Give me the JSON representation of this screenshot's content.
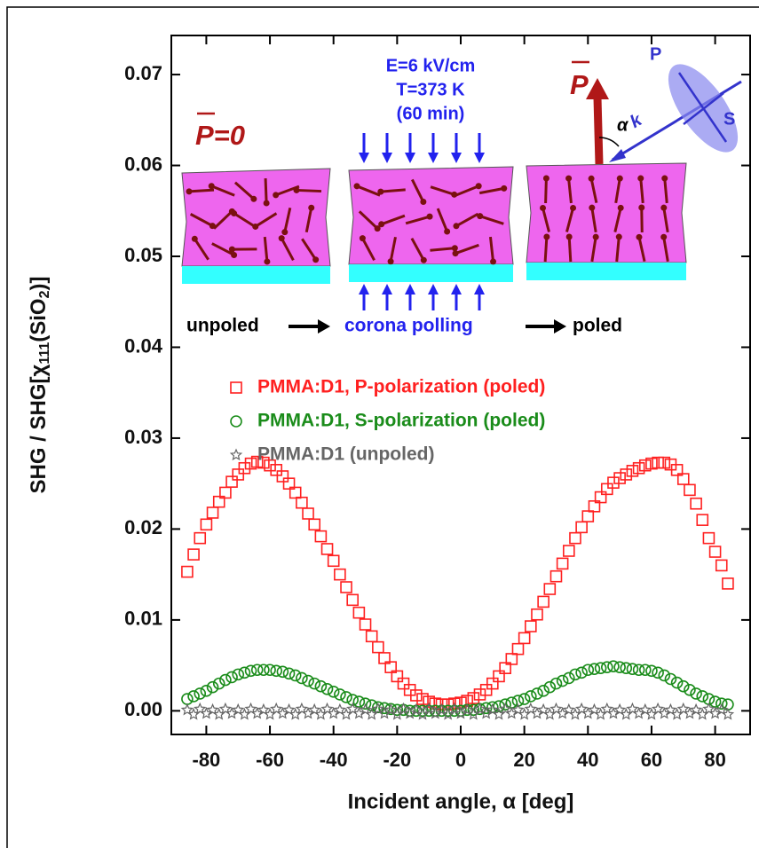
{
  "chart_data": {
    "type": "scatter",
    "ylabel": [
      "SHG / SHG[",
      "χ",
      "111",
      "(SiO",
      "2",
      ")]"
    ],
    "xlabel": "Incident angle, α [deg]",
    "xlim": [
      -91,
      91
    ],
    "xticks": [
      -80,
      -60,
      -40,
      -20,
      0,
      20,
      40,
      60,
      80
    ],
    "ylim": [
      -0.0026,
      0.0743
    ],
    "yticks": [
      {
        "value": 0,
        "label": "0.00"
      },
      0.01,
      0.02,
      0.03,
      0.04,
      0.05,
      0.06,
      0.07
    ],
    "x": [
      -86,
      -84,
      -82,
      -80,
      -78,
      -76,
      -74,
      -72,
      -70,
      -68,
      -66,
      -64,
      -62,
      -60,
      -58,
      -56,
      -54,
      -52,
      -50,
      -48,
      -46,
      -44,
      -42,
      -40,
      -38,
      -36,
      -34,
      -32,
      -30,
      -28,
      -26,
      -24,
      -22,
      -20,
      -18,
      -16,
      -14,
      -12,
      -10,
      -8,
      -6,
      -4,
      -2,
      0,
      2,
      4,
      6,
      8,
      10,
      12,
      14,
      16,
      18,
      20,
      22,
      24,
      26,
      28,
      30,
      32,
      34,
      36,
      38,
      40,
      42,
      44,
      46,
      48,
      50,
      52,
      54,
      56,
      58,
      60,
      62,
      64,
      66,
      68,
      70,
      72,
      74,
      76,
      78,
      80,
      82,
      84
    ],
    "series": [
      {
        "name": "PMMA:D1, P-polarization (poled)",
        "color": "#ff2020",
        "marker": "square",
        "values": [
          0.0153,
          0.0172,
          0.019,
          0.0205,
          0.0218,
          0.023,
          0.024,
          0.0252,
          0.026,
          0.0267,
          0.0272,
          0.0274,
          0.0273,
          0.027,
          0.0265,
          0.0258,
          0.025,
          0.024,
          0.0229,
          0.0217,
          0.0205,
          0.0192,
          0.0178,
          0.0165,
          0.015,
          0.0136,
          0.0122,
          0.0108,
          0.0095,
          0.0082,
          0.007,
          0.0058,
          0.0048,
          0.0038,
          0.003,
          0.0023,
          0.0017,
          0.0013,
          0.001,
          0.0008,
          0.0007,
          0.0007,
          0.0008,
          0.0009,
          0.0011,
          0.0014,
          0.0018,
          0.0023,
          0.003,
          0.0038,
          0.0047,
          0.0057,
          0.0068,
          0.008,
          0.0093,
          0.0106,
          0.012,
          0.0134,
          0.0148,
          0.0162,
          0.0176,
          0.019,
          0.0202,
          0.0214,
          0.0225,
          0.0235,
          0.0244,
          0.0251,
          0.0256,
          0.026,
          0.0264,
          0.0267,
          0.027,
          0.0272,
          0.0273,
          0.0273,
          0.0271,
          0.0265,
          0.0255,
          0.0243,
          0.0228,
          0.021,
          0.019,
          0.0175,
          0.016,
          0.014
        ]
      },
      {
        "name": "PMMA:D1, S-polarization (poled)",
        "color": "#1a8c1a",
        "marker": "circle",
        "values": [
          0.0013,
          0.0016,
          0.0019,
          0.0022,
          0.0026,
          0.003,
          0.0034,
          0.0037,
          0.004,
          0.0042,
          0.0044,
          0.0045,
          0.0045,
          0.0045,
          0.0044,
          0.0043,
          0.0041,
          0.0039,
          0.0036,
          0.0033,
          0.003,
          0.0027,
          0.0024,
          0.0021,
          0.0018,
          0.0015,
          0.0012,
          0.001,
          0.0008,
          0.0006,
          0.0004,
          0.0003,
          0.0002,
          0.0001,
          0.0001,
          0,
          0,
          0,
          0,
          0,
          0,
          0,
          0,
          0,
          0.0001,
          0.0001,
          0.0002,
          0.0003,
          0.0004,
          0.0005,
          0.0007,
          0.0009,
          0.0011,
          0.0013,
          0.0016,
          0.0019,
          0.0022,
          0.0026,
          0.003,
          0.0033,
          0.0036,
          0.004,
          0.0042,
          0.0045,
          0.0046,
          0.0047,
          0.0048,
          0.0049,
          0.0048,
          0.0047,
          0.0046,
          0.0045,
          0.0045,
          0.0044,
          0.0042,
          0.0039,
          0.0035,
          0.0031,
          0.0027,
          0.0023,
          0.0019,
          0.0016,
          0.0013,
          0.001,
          0.0008,
          0.0007
        ]
      },
      {
        "name": "PMMA:D1 (unpoled)",
        "color": "#666666",
        "marker": "star",
        "values": [
          0.0001,
          -0.0004,
          0.0002,
          -0.0003,
          0.0001,
          -0.0004,
          0.0002,
          -0.0003,
          0.0001,
          -0.0004,
          0.0002,
          -0.0003,
          0.0001,
          -0.0004,
          0.0002,
          -0.0003,
          0.0001,
          -0.0004,
          0.0002,
          -0.0003,
          0.0001,
          -0.0004,
          0.0002,
          -0.0003,
          0.0001,
          -0.0004,
          0.0002,
          -0.0003,
          0.0001,
          -0.0004,
          0.0002,
          -0.0003,
          0.0001,
          -0.0004,
          0.0002,
          -0.0003,
          0.0001,
          -0.0004,
          0.0002,
          -0.0003,
          0.0001,
          -0.0004,
          0.0002,
          -0.0003,
          0.0001,
          -0.0004,
          0.0002,
          -0.0003,
          0.0001,
          -0.0004,
          0.0002,
          -0.0003,
          0.0001,
          -0.0004,
          0.0002,
          -0.0003,
          0.0001,
          -0.0004,
          0.0002,
          -0.0003,
          0.0001,
          -0.0004,
          0.0002,
          -0.0003,
          0.0001,
          -0.0004,
          0.0002,
          -0.0003,
          0.0001,
          -0.0004,
          0.0002,
          -0.0003,
          0.0001,
          -0.0004,
          0.0002,
          -0.0003,
          0.0001,
          -0.0004,
          0.0002,
          -0.0003,
          0.0001,
          -0.0004,
          0.0002,
          -0.0003,
          0.0001,
          -0.0004
        ]
      }
    ],
    "inset": {
      "p_zero": "P=0",
      "field": "E=6 kV/cm",
      "temperature": "T=373 K",
      "time": "(60 min)",
      "p_vector": "P",
      "alpha": "α",
      "k": "k",
      "p_pol": "P",
      "s_pol": "S",
      "unpoled": "unpoled",
      "corona": "corona polling",
      "poled": "poled"
    }
  }
}
